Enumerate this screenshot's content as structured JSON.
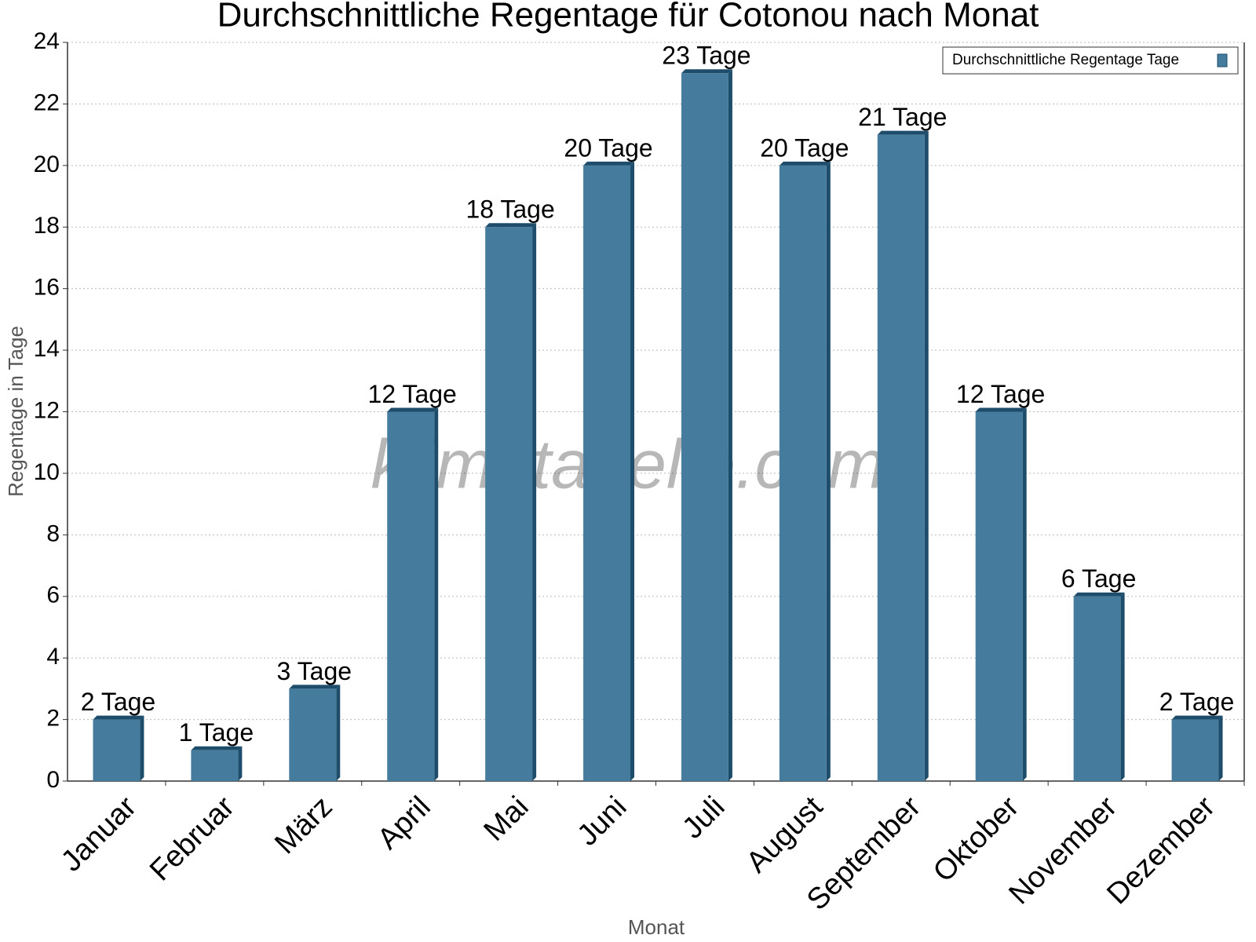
{
  "chart_data": {
    "type": "bar",
    "title": "Durchschnittliche Regentage für Cotonou nach Monat",
    "x_label": "Monat",
    "y_label": "Regentage in Tage",
    "watermark": "klimatabelle.com",
    "categories": [
      "Januar",
      "Februar",
      "März",
      "April",
      "Mai",
      "Juni",
      "Juli",
      "August",
      "September",
      "Oktober",
      "November",
      "Dezember"
    ],
    "series": [
      {
        "name": "Durchschnittliche Regentage Tage",
        "color": "#457b9d",
        "values": [
          2,
          1,
          3,
          12,
          18,
          20,
          23,
          20,
          21,
          12,
          6,
          2
        ],
        "value_labels": [
          "2 Tage",
          "1 Tage",
          "3 Tage",
          "12 Tage",
          "18 Tage",
          "20 Tage",
          "23 Tage",
          "20 Tage",
          "21 Tage",
          "12 Tage",
          "6 Tage",
          "2 Tage"
        ]
      }
    ],
    "ylim": [
      0,
      24
    ],
    "yticks": [
      0,
      2,
      4,
      6,
      8,
      10,
      12,
      14,
      16,
      18,
      20,
      22,
      24
    ],
    "grid": true,
    "legend": "top-right"
  }
}
